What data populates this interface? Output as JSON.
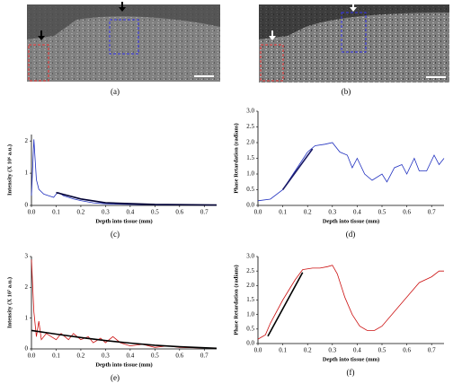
{
  "image_panels": {
    "captions": [
      "(a)",
      "(b)"
    ]
  },
  "chart_data": [
    {
      "type": "line",
      "caption": "(c)",
      "xlabel": "Depth into tissue (mm)",
      "ylabel": "Intensity (X 10⁶ a.u.)",
      "xlim": [
        0,
        0.75
      ],
      "ylim": [
        0,
        2.2
      ],
      "xticks": [
        {
          "value": 0,
          "label": "0.0"
        },
        0.1,
        0.2,
        0.3,
        0.4,
        0.5,
        0.6,
        0.7
      ],
      "yticks": [
        0,
        1,
        2
      ],
      "series": [
        {
          "color": "#1f2fbf",
          "x": [
            0,
            0.01,
            0.02,
            0.03,
            0.05,
            0.07,
            0.09,
            0.1,
            0.11,
            0.13,
            0.15,
            0.17,
            0.2,
            0.25,
            0.3,
            0.4,
            0.5,
            0.6,
            0.7,
            0.75
          ],
          "values": [
            0.3,
            2.05,
            0.8,
            0.5,
            0.35,
            0.3,
            0.25,
            0.35,
            0.4,
            0.3,
            0.25,
            0.2,
            0.15,
            0.08,
            0.05,
            0.03,
            0.02,
            0.01,
            0.01,
            0.01
          ]
        },
        {
          "color": "#000033",
          "x": [
            0.1,
            0.2,
            0.3,
            0.5,
            0.75
          ],
          "values": [
            0.4,
            0.2,
            0.08,
            0.03,
            0.01
          ]
        }
      ]
    },
    {
      "type": "line",
      "caption": "(d)",
      "xlabel": "Depth into tissue (mm)",
      "ylabel": "Phase Retardation (radians)",
      "xlim": [
        0,
        0.75
      ],
      "ylim": [
        0,
        3
      ],
      "xticks": [
        {
          "value": 0,
          "label": "0.0"
        },
        0.1,
        0.2,
        0.3,
        0.4,
        0.5,
        0.6,
        0.7
      ],
      "yticks": [
        {
          "value": 0,
          "label": "0.0"
        },
        0.5,
        {
          "value": 1,
          "label": "1.0"
        },
        1.5,
        {
          "value": 2,
          "label": "2.0"
        },
        2.5,
        {
          "value": 3,
          "label": "3.0"
        }
      ],
      "series": [
        {
          "color": "#1f2fbf",
          "x": [
            0,
            0.05,
            0.1,
            0.15,
            0.2,
            0.23,
            0.27,
            0.3,
            0.33,
            0.36,
            0.38,
            0.4,
            0.43,
            0.46,
            0.5,
            0.52,
            0.55,
            0.58,
            0.6,
            0.63,
            0.65,
            0.68,
            0.71,
            0.73,
            0.75
          ],
          "values": [
            0.15,
            0.2,
            0.5,
            1.1,
            1.7,
            1.9,
            1.95,
            2.0,
            1.7,
            1.6,
            1.2,
            1.5,
            1.0,
            0.8,
            1.0,
            0.75,
            1.2,
            1.3,
            1.0,
            1.5,
            1.1,
            1.1,
            1.6,
            1.3,
            1.5
          ]
        },
        {
          "color": "#1a1a66",
          "x": [
            0.1,
            0.22
          ],
          "values": [
            0.5,
            1.8
          ]
        }
      ]
    },
    {
      "type": "line",
      "caption": "(e)",
      "xlabel": "Depth into tissue (mm)",
      "ylabel": "Intensity (X 10⁷ a.u.)",
      "xlim": [
        0,
        0.75
      ],
      "ylim": [
        0,
        3
      ],
      "xticks": [
        {
          "value": 0,
          "label": "0.0"
        },
        0.1,
        0.2,
        0.3,
        0.4,
        0.5,
        0.6,
        0.7
      ],
      "yticks": [
        0,
        1,
        2,
        3
      ],
      "series": [
        {
          "color": "#cc1111",
          "x": [
            0,
            0.01,
            0.02,
            0.03,
            0.04,
            0.06,
            0.08,
            0.1,
            0.12,
            0.15,
            0.17,
            0.2,
            0.23,
            0.25,
            0.28,
            0.3,
            0.33,
            0.36,
            0.4,
            0.45,
            0.5,
            0.55,
            0.6,
            0.7,
            0.75
          ],
          "values": [
            2.9,
            1.2,
            0.4,
            0.9,
            0.3,
            0.5,
            0.4,
            0.3,
            0.5,
            0.3,
            0.5,
            0.3,
            0.4,
            0.2,
            0.35,
            0.2,
            0.4,
            0.2,
            0.1,
            0.15,
            0.05,
            0.1,
            0.05,
            0.03,
            0.02
          ]
        },
        {
          "color": "#000000",
          "x": [
            0,
            0.1,
            0.2,
            0.3,
            0.4,
            0.5,
            0.6,
            0.75
          ],
          "values": [
            0.6,
            0.48,
            0.37,
            0.27,
            0.19,
            0.12,
            0.07,
            0.02
          ]
        }
      ]
    },
    {
      "type": "line",
      "caption": "(f)",
      "xlabel": "Depth into tissue (mm)",
      "ylabel": "Phase Retardation (radians)",
      "xlim": [
        0,
        0.75
      ],
      "ylim": [
        0,
        3
      ],
      "xticks": [
        {
          "value": 0,
          "label": "0.0"
        },
        0.1,
        0.2,
        0.3,
        0.4,
        0.5,
        0.6,
        0.7
      ],
      "yticks": [
        {
          "value": 0,
          "label": "0.0"
        },
        0.5,
        {
          "value": 1,
          "label": "1.0"
        },
        1.5,
        {
          "value": 2,
          "label": "2.0"
        },
        2.5,
        {
          "value": 3,
          "label": "3.0"
        }
      ],
      "series": [
        {
          "color": "#cc1111",
          "x": [
            0,
            0.03,
            0.05,
            0.1,
            0.15,
            0.18,
            0.22,
            0.25,
            0.28,
            0.3,
            0.32,
            0.35,
            0.38,
            0.41,
            0.44,
            0.47,
            0.5,
            0.55,
            0.6,
            0.65,
            0.7,
            0.73,
            0.75
          ],
          "values": [
            0.15,
            0.3,
            0.7,
            1.5,
            2.2,
            2.55,
            2.6,
            2.6,
            2.65,
            2.7,
            2.4,
            1.6,
            1.0,
            0.6,
            0.45,
            0.45,
            0.6,
            1.1,
            1.6,
            2.1,
            2.3,
            2.5,
            2.5
          ]
        },
        {
          "color": "#000000",
          "x": [
            0.04,
            0.18
          ],
          "values": [
            0.25,
            2.45
          ]
        }
      ]
    }
  ]
}
